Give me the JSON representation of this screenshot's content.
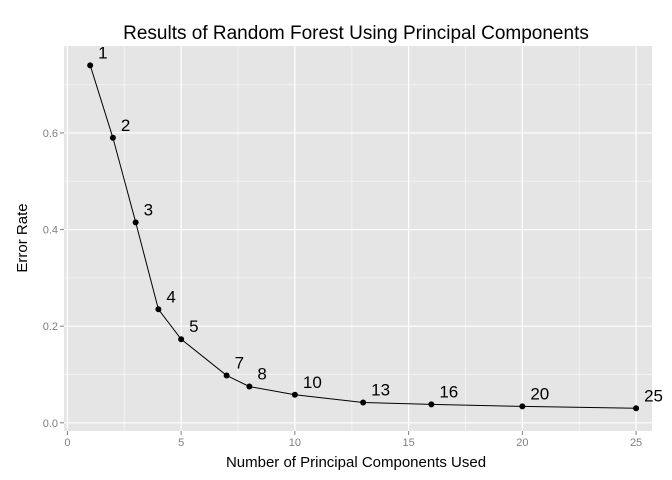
{
  "chart_data": {
    "type": "line",
    "title": "Results of Random Forest Using Principal Components",
    "xlabel": "Number of Principal Components Used",
    "ylabel": "Error Rate",
    "xlim": [
      -0.15,
      25.7
    ],
    "ylim": [
      -0.017,
      0.78
    ],
    "xticks": [
      0,
      5,
      10,
      15,
      20,
      25
    ],
    "xtick_labels": [
      "0",
      "5",
      "10",
      "15",
      "20",
      "25"
    ],
    "yticks": [
      0.0,
      0.2,
      0.4,
      0.6
    ],
    "ytick_labels": [
      "0.0",
      "0.2",
      "0.4",
      "0.6"
    ],
    "grid": true,
    "legend": "none",
    "series": [
      {
        "x": [
          1,
          2,
          3,
          4,
          5,
          7,
          8,
          10,
          13,
          16,
          20,
          25
        ],
        "y": [
          0.74,
          0.59,
          0.415,
          0.235,
          0.173,
          0.098,
          0.075,
          0.058,
          0.042,
          0.038,
          0.034,
          0.03
        ],
        "point_labels": [
          "1",
          "2",
          "3",
          "4",
          "5",
          "7",
          "8",
          "10",
          "13",
          "16",
          "20",
          "25"
        ]
      }
    ],
    "colors": {
      "panel": "#e5e5e5",
      "grid_major": "#ffffff",
      "grid_minor": "#f2f2f2",
      "line": "#000000",
      "tick_label": "#7f7f7f"
    }
  }
}
